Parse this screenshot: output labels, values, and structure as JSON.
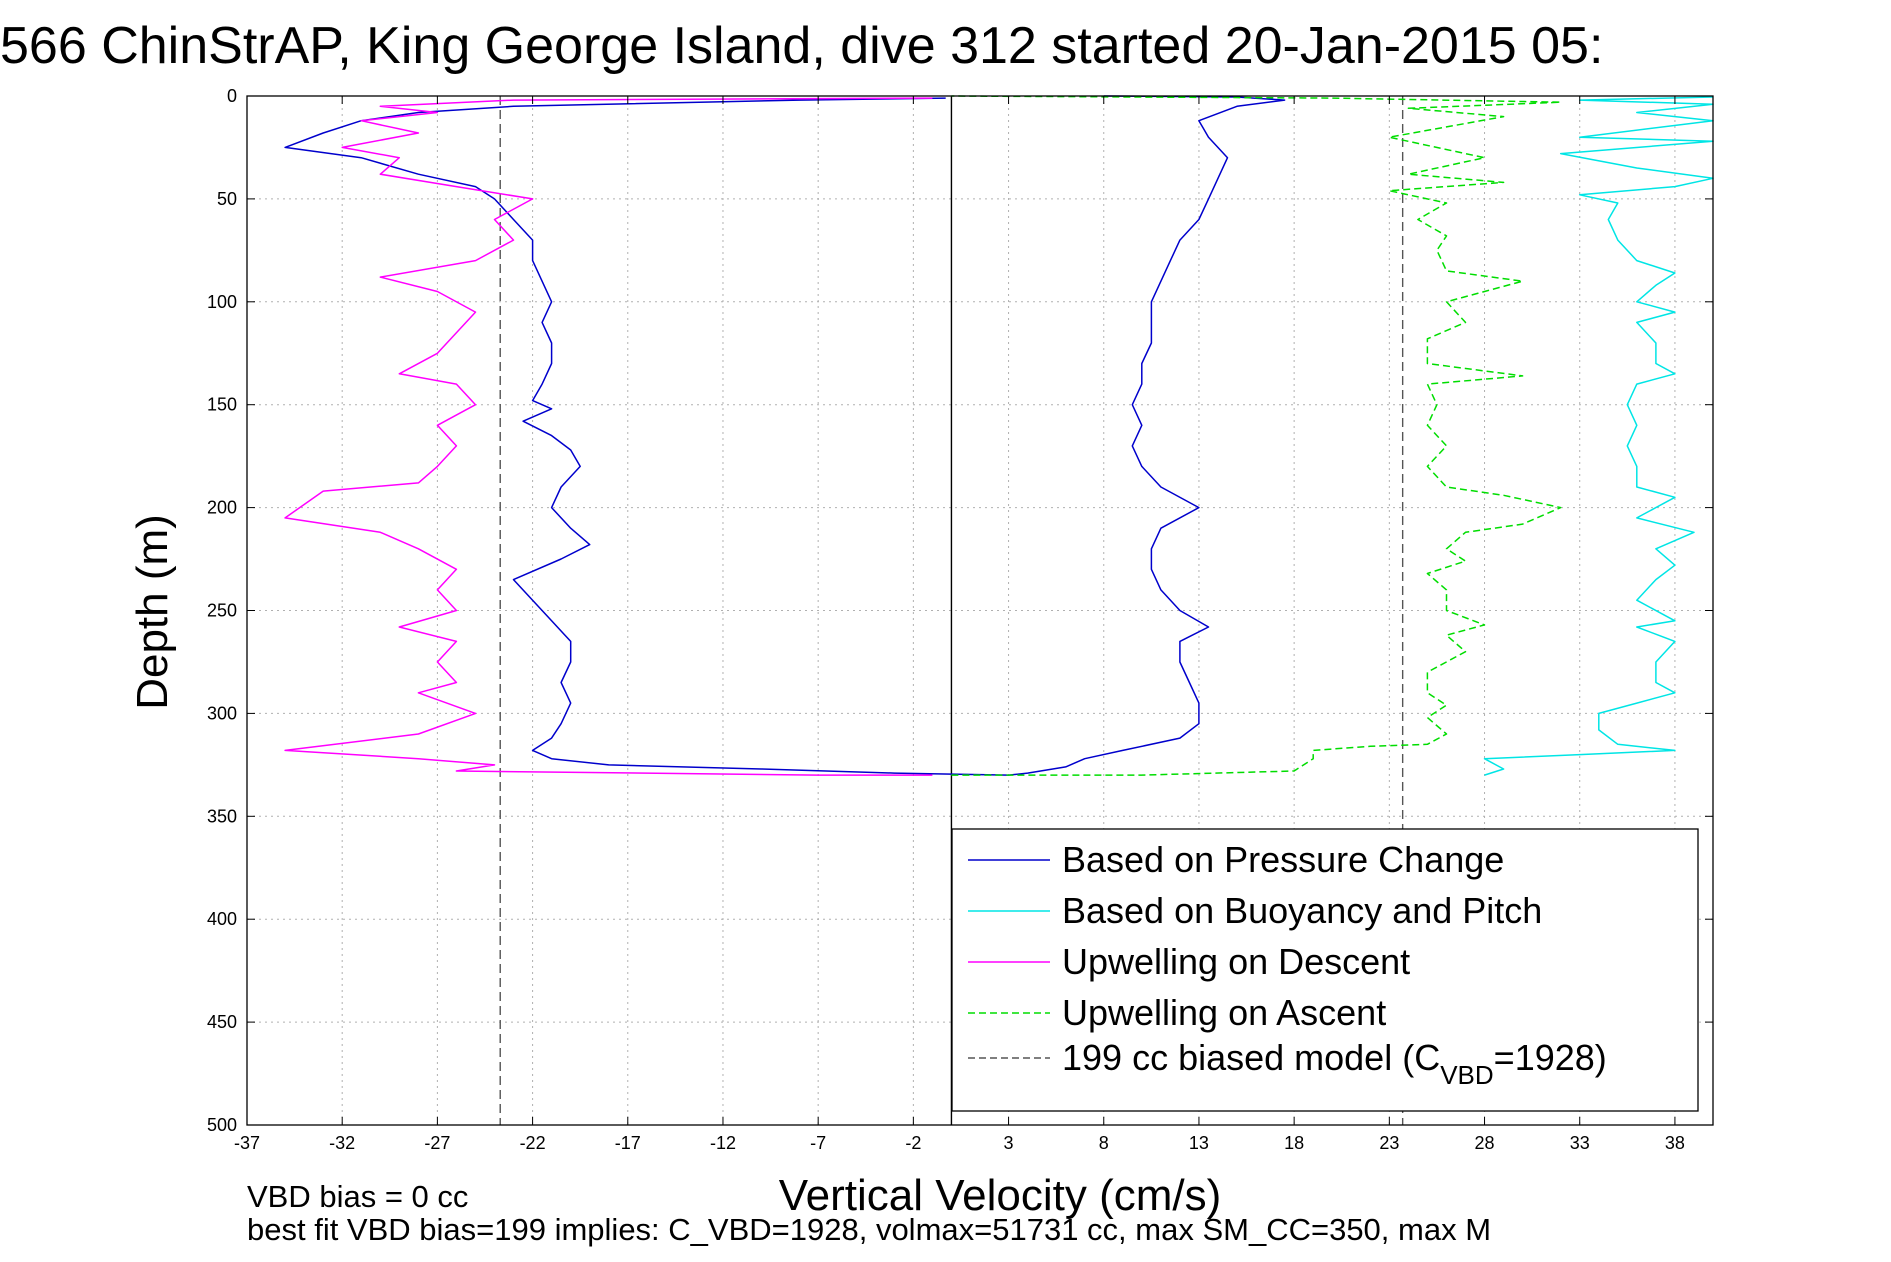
{
  "title": "566 ChinStrAP, King George Island, dive 312 started 20-Jan-2015 05:",
  "footnotes": {
    "line1": "VBD bias = 0 cc",
    "line2": "best fit VBD bias=199 implies: C_VBD=1928, volmax=51731 cc, max SM_CC=350, max M"
  },
  "legend": {
    "items": [
      {
        "label": "Based on Pressure Change",
        "color": "#0000cc",
        "dash": "solid"
      },
      {
        "label": "Based on Buoyancy and Pitch",
        "color": "#00e5e5",
        "dash": "solid"
      },
      {
        "label": "Upwelling on Descent",
        "color": "#ff00ff",
        "dash": "solid"
      },
      {
        "label": "Upwelling on Ascent",
        "color": "#00dd00",
        "dash": "dashed"
      }
    ],
    "model": {
      "prefix": "199 cc biased model (C",
      "sub": "VBD",
      "suffix": "=1928)",
      "color": "#555555",
      "dash": "dashed"
    }
  },
  "chart_data": {
    "type": "line",
    "title": "566 ChinStrAP, King George Island, dive 312 started 20-Jan-2015 05:",
    "xlabel": "Vertical Velocity (cm/s)",
    "ylabel": "Depth (m)",
    "xlim": [
      -37,
      40
    ],
    "ylim": [
      0,
      500
    ],
    "y_reversed": true,
    "xticks": [
      -37,
      -32,
      -27,
      -22,
      -17,
      -12,
      -7,
      -2,
      3,
      8,
      13,
      18,
      23,
      28,
      33,
      38
    ],
    "yticks": [
      0,
      50,
      100,
      150,
      200,
      250,
      300,
      350,
      400,
      450,
      500
    ],
    "grid": true,
    "legend_position": "lower-right",
    "reference_lines": [
      {
        "x": 0,
        "style": "solid",
        "color": "#000000"
      },
      {
        "x": -23.7,
        "style": "dashed",
        "color": "#555555"
      },
      {
        "x": 23.7,
        "style": "dashed",
        "color": "#555555"
      }
    ],
    "series": [
      {
        "name": "Based on Pressure Change",
        "color": "#0000cc",
        "dash": "solid",
        "points": [
          [
            -0.3,
            1
          ],
          [
            -8,
            2
          ],
          [
            -23,
            5
          ],
          [
            -28,
            8
          ],
          [
            -31,
            12
          ],
          [
            -33,
            18
          ],
          [
            -35,
            25
          ],
          [
            -31,
            30
          ],
          [
            -28,
            38
          ],
          [
            -25,
            44
          ],
          [
            -24,
            50
          ],
          [
            -23,
            60
          ],
          [
            -22,
            70
          ],
          [
            -22,
            80
          ],
          [
            -21.5,
            90
          ],
          [
            -21,
            100
          ],
          [
            -21.5,
            110
          ],
          [
            -21,
            120
          ],
          [
            -21,
            130
          ],
          [
            -21.5,
            140
          ],
          [
            -22,
            148
          ],
          [
            -21,
            152
          ],
          [
            -22.5,
            158
          ],
          [
            -21,
            165
          ],
          [
            -20,
            172
          ],
          [
            -19.5,
            180
          ],
          [
            -20.5,
            190
          ],
          [
            -21,
            200
          ],
          [
            -20,
            210
          ],
          [
            -19,
            218
          ],
          [
            -20.5,
            225
          ],
          [
            -23,
            235
          ],
          [
            -22,
            245
          ],
          [
            -21,
            255
          ],
          [
            -20,
            265
          ],
          [
            -20,
            275
          ],
          [
            -20.5,
            285
          ],
          [
            -20,
            295
          ],
          [
            -20.5,
            305
          ],
          [
            -21,
            312
          ],
          [
            -22,
            318
          ],
          [
            -21,
            322
          ],
          [
            -18,
            325
          ],
          [
            -10,
            327
          ],
          [
            -3,
            329
          ],
          [
            3,
            330
          ],
          [
            4,
            329
          ],
          [
            6,
            326
          ],
          [
            7,
            322
          ],
          [
            9,
            318
          ],
          [
            12,
            312
          ],
          [
            13,
            305
          ],
          [
            13,
            295
          ],
          [
            12.5,
            285
          ],
          [
            12,
            275
          ],
          [
            12,
            265
          ],
          [
            13.5,
            258
          ],
          [
            12,
            250
          ],
          [
            11,
            240
          ],
          [
            10.5,
            230
          ],
          [
            10.5,
            220
          ],
          [
            11,
            210
          ],
          [
            13,
            200
          ],
          [
            11,
            190
          ],
          [
            10,
            180
          ],
          [
            9.5,
            170
          ],
          [
            10,
            160
          ],
          [
            9.5,
            150
          ],
          [
            10,
            140
          ],
          [
            10,
            130
          ],
          [
            10.5,
            120
          ],
          [
            10.5,
            110
          ],
          [
            10.5,
            100
          ],
          [
            11,
            90
          ],
          [
            11.5,
            80
          ],
          [
            12,
            70
          ],
          [
            13,
            60
          ],
          [
            13.5,
            50
          ],
          [
            14,
            40
          ],
          [
            14.5,
            30
          ],
          [
            13.5,
            20
          ],
          [
            13,
            12
          ],
          [
            15,
            5
          ],
          [
            17.5,
            2
          ],
          [
            15,
            0.5
          ],
          [
            8,
            0
          ]
        ]
      },
      {
        "name": "Based on Buoyancy and Pitch",
        "color": "#00e5e5",
        "dash": "solid",
        "points": [
          [
            28,
            330
          ],
          [
            29,
            327
          ],
          [
            28,
            322
          ],
          [
            33,
            320
          ],
          [
            38,
            318
          ],
          [
            35,
            315
          ],
          [
            34,
            308
          ],
          [
            34,
            300
          ],
          [
            36,
            295
          ],
          [
            38,
            290
          ],
          [
            37,
            285
          ],
          [
            37,
            275
          ],
          [
            38,
            265
          ],
          [
            36,
            258
          ],
          [
            38,
            255
          ],
          [
            36,
            245
          ],
          [
            37,
            235
          ],
          [
            38,
            228
          ],
          [
            37,
            220
          ],
          [
            39,
            212
          ],
          [
            36,
            205
          ],
          [
            38,
            195
          ],
          [
            36,
            190
          ],
          [
            36,
            180
          ],
          [
            35.5,
            170
          ],
          [
            36,
            160
          ],
          [
            35.5,
            150
          ],
          [
            36,
            140
          ],
          [
            38,
            135
          ],
          [
            37,
            130
          ],
          [
            37,
            120
          ],
          [
            36,
            110
          ],
          [
            38,
            105
          ],
          [
            36,
            100
          ],
          [
            37,
            92
          ],
          [
            38,
            86
          ],
          [
            36,
            80
          ],
          [
            35,
            70
          ],
          [
            34.5,
            60
          ],
          [
            35,
            52
          ],
          [
            33,
            48
          ],
          [
            38,
            44
          ],
          [
            40,
            40
          ],
          [
            36,
            35
          ],
          [
            32,
            28
          ],
          [
            40,
            22
          ],
          [
            33,
            20
          ],
          [
            40,
            12
          ],
          [
            36,
            8
          ],
          [
            40,
            4
          ],
          [
            33,
            2
          ],
          [
            40,
            0.5
          ]
        ]
      },
      {
        "name": "Upwelling on Descent",
        "color": "#ff00ff",
        "dash": "solid",
        "points": [
          [
            -1,
            1
          ],
          [
            -23,
            2
          ],
          [
            -30,
            5
          ],
          [
            -27,
            8
          ],
          [
            -31,
            12
          ],
          [
            -28,
            18
          ],
          [
            -32,
            25
          ],
          [
            -29,
            30
          ],
          [
            -30,
            38
          ],
          [
            -26,
            44
          ],
          [
            -22,
            50
          ],
          [
            -24,
            60
          ],
          [
            -23,
            70
          ],
          [
            -25,
            80
          ],
          [
            -30,
            88
          ],
          [
            -27,
            95
          ],
          [
            -25,
            105
          ],
          [
            -26,
            115
          ],
          [
            -27,
            125
          ],
          [
            -29,
            135
          ],
          [
            -26,
            140
          ],
          [
            -25,
            150
          ],
          [
            -27,
            160
          ],
          [
            -26,
            170
          ],
          [
            -27,
            180
          ],
          [
            -28,
            188
          ],
          [
            -33,
            192
          ],
          [
            -35,
            205
          ],
          [
            -30,
            212
          ],
          [
            -28,
            220
          ],
          [
            -26,
            230
          ],
          [
            -27,
            240
          ],
          [
            -26,
            250
          ],
          [
            -29,
            258
          ],
          [
            -26,
            265
          ],
          [
            -27,
            275
          ],
          [
            -26,
            285
          ],
          [
            -28,
            290
          ],
          [
            -25,
            300
          ],
          [
            -28,
            310
          ],
          [
            -35,
            318
          ],
          [
            -28,
            322
          ],
          [
            -24,
            325
          ],
          [
            -26,
            328
          ],
          [
            -7,
            330
          ],
          [
            -1,
            330
          ]
        ]
      },
      {
        "name": "Upwelling on Ascent",
        "color": "#00dd00",
        "dash": "dashed",
        "points": [
          [
            0,
            330
          ],
          [
            10,
            330
          ],
          [
            18,
            328
          ],
          [
            19,
            322
          ],
          [
            19,
            318
          ],
          [
            22,
            316
          ],
          [
            25,
            315
          ],
          [
            26,
            310
          ],
          [
            25,
            302
          ],
          [
            26,
            296
          ],
          [
            25,
            290
          ],
          [
            25,
            280
          ],
          [
            27,
            270
          ],
          [
            26,
            262
          ],
          [
            28,
            257
          ],
          [
            26,
            250
          ],
          [
            26,
            240
          ],
          [
            25,
            232
          ],
          [
            27,
            226
          ],
          [
            26,
            220
          ],
          [
            27,
            212
          ],
          [
            30,
            208
          ],
          [
            32,
            200
          ],
          [
            29,
            194
          ],
          [
            26,
            190
          ],
          [
            25,
            180
          ],
          [
            26,
            170
          ],
          [
            25,
            160
          ],
          [
            25.5,
            150
          ],
          [
            25,
            140
          ],
          [
            30,
            136
          ],
          [
            25,
            130
          ],
          [
            25,
            118
          ],
          [
            27,
            110
          ],
          [
            26,
            100
          ],
          [
            30,
            90
          ],
          [
            26,
            85
          ],
          [
            25.5,
            75
          ],
          [
            26,
            68
          ],
          [
            24.5,
            60
          ],
          [
            26,
            52
          ],
          [
            23,
            46
          ],
          [
            29,
            42
          ],
          [
            24,
            38
          ],
          [
            28,
            30
          ],
          [
            23,
            20
          ],
          [
            26,
            15
          ],
          [
            29,
            10
          ],
          [
            24,
            6
          ],
          [
            32,
            3
          ],
          [
            20,
            1
          ],
          [
            0,
            0
          ]
        ]
      }
    ]
  }
}
